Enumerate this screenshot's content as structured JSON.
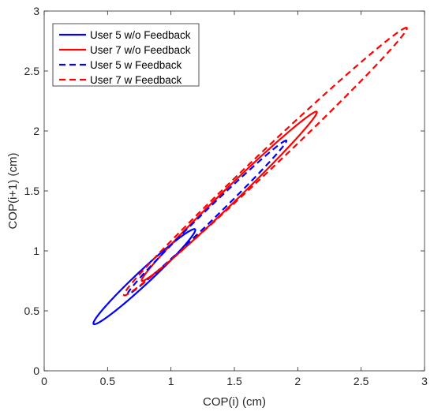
{
  "chart_data": {
    "type": "line",
    "xlabel": "COP(i) (cm)",
    "ylabel": "COP(i+1) (cm)",
    "xlim": [
      0,
      3
    ],
    "ylim": [
      0,
      3
    ],
    "xticks": [
      0,
      0.5,
      1,
      1.5,
      2,
      2.5,
      3
    ],
    "yticks": [
      0,
      0.5,
      1,
      1.5,
      2,
      2.5,
      3
    ],
    "xtick_labels": [
      "0",
      "0.5",
      "1",
      "1.5",
      "2",
      "2.5",
      "3"
    ],
    "ytick_labels": [
      "0",
      "0.5",
      "1",
      "1.5",
      "2",
      "2.5",
      "3"
    ],
    "grid": false,
    "legend_position": "top-left",
    "series": [
      {
        "name": "User 5 w/o Feedback",
        "color": "#0000ff",
        "linestyle": "solid",
        "ellipse": {
          "x_end_1": 0.39,
          "y_end_1": 0.39,
          "x_end_2": 1.19,
          "y_end_2": 1.18,
          "minor_half_width": 0.055
        }
      },
      {
        "name": "User 7 w/o Feedback",
        "color": "#ff0000",
        "linestyle": "solid",
        "ellipse": {
          "x_end_1": 0.77,
          "y_end_1": 0.75,
          "x_end_2": 2.15,
          "y_end_2": 2.16,
          "minor_half_width": 0.06
        }
      },
      {
        "name": "User 5 w Feedback",
        "color": "#0000ff",
        "linestyle": "dashed",
        "ellipse": {
          "x_end_1": 0.66,
          "y_end_1": 0.64,
          "x_end_2": 1.91,
          "y_end_2": 1.92,
          "minor_half_width": 0.045
        }
      },
      {
        "name": "User 7 w Feedback",
        "color": "#ff0000",
        "linestyle": "dashed",
        "ellipse": {
          "x_end_1": 0.63,
          "y_end_1": 0.63,
          "x_end_2": 2.86,
          "y_end_2": 2.86,
          "minor_half_width": 0.075
        }
      }
    ]
  }
}
